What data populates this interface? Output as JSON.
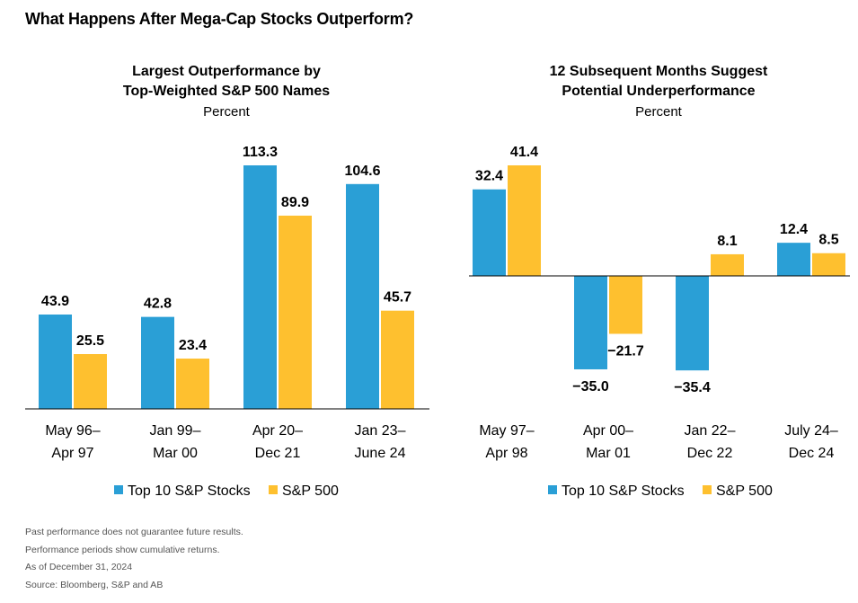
{
  "page_title": "What Happens After Mega-Cap Stocks Outperform?",
  "colors": {
    "top10": "#2A9FD6",
    "sp500": "#FEC02F"
  },
  "chart_data": [
    {
      "type": "bar",
      "title_lines": [
        "Largest Outperformance by",
        "Top-Weighted S&P 500 Names"
      ],
      "unit": "Percent",
      "categories": [
        [
          "May 96–",
          "Apr 97"
        ],
        [
          "Jan 99–",
          "Mar 00"
        ],
        [
          "Apr 20–",
          "Dec 21"
        ],
        [
          "Jan 23–",
          "June 24"
        ]
      ],
      "series": [
        {
          "name": "Top 10 S&P Stocks",
          "values": [
            43.9,
            42.8,
            113.3,
            104.6
          ],
          "labels": [
            "43.9",
            "42.8",
            "113.3",
            "104.6"
          ]
        },
        {
          "name": "S&P 500",
          "values": [
            25.5,
            23.4,
            89.9,
            45.7
          ],
          "labels": [
            "25.5",
            "23.4",
            "89.9",
            "45.7"
          ]
        }
      ],
      "ylim": [
        0,
        113.3
      ],
      "grid": false,
      "legend": "bottom"
    },
    {
      "type": "bar",
      "title_lines": [
        "12 Subsequent Months Suggest",
        "Potential Underperformance"
      ],
      "unit": "Percent",
      "categories": [
        [
          "May 97–",
          "Apr 98"
        ],
        [
          "Apr 00–",
          "Mar 01"
        ],
        [
          "Jan 22–",
          "Dec 22"
        ],
        [
          "July 24–",
          "Dec 24"
        ]
      ],
      "series": [
        {
          "name": "Top 10 S&P Stocks",
          "values": [
            32.4,
            -35.0,
            -35.4,
            12.4
          ],
          "labels": [
            "32.4",
            "−35.0",
            "−35.4",
            "12.4"
          ]
        },
        {
          "name": "S&P 500",
          "values": [
            41.4,
            -21.7,
            8.1,
            8.5
          ],
          "labels": [
            "41.4",
            "−21.7",
            "8.1",
            "8.5"
          ]
        }
      ],
      "ylim": [
        -35.4,
        41.4
      ],
      "grid": false,
      "legend": "bottom"
    }
  ],
  "footnotes": [
    "Past performance does not guarantee future results.",
    "Performance periods show cumulative returns.",
    "As of December 31, 2024",
    "Source: Bloomberg, S&P and AB"
  ]
}
